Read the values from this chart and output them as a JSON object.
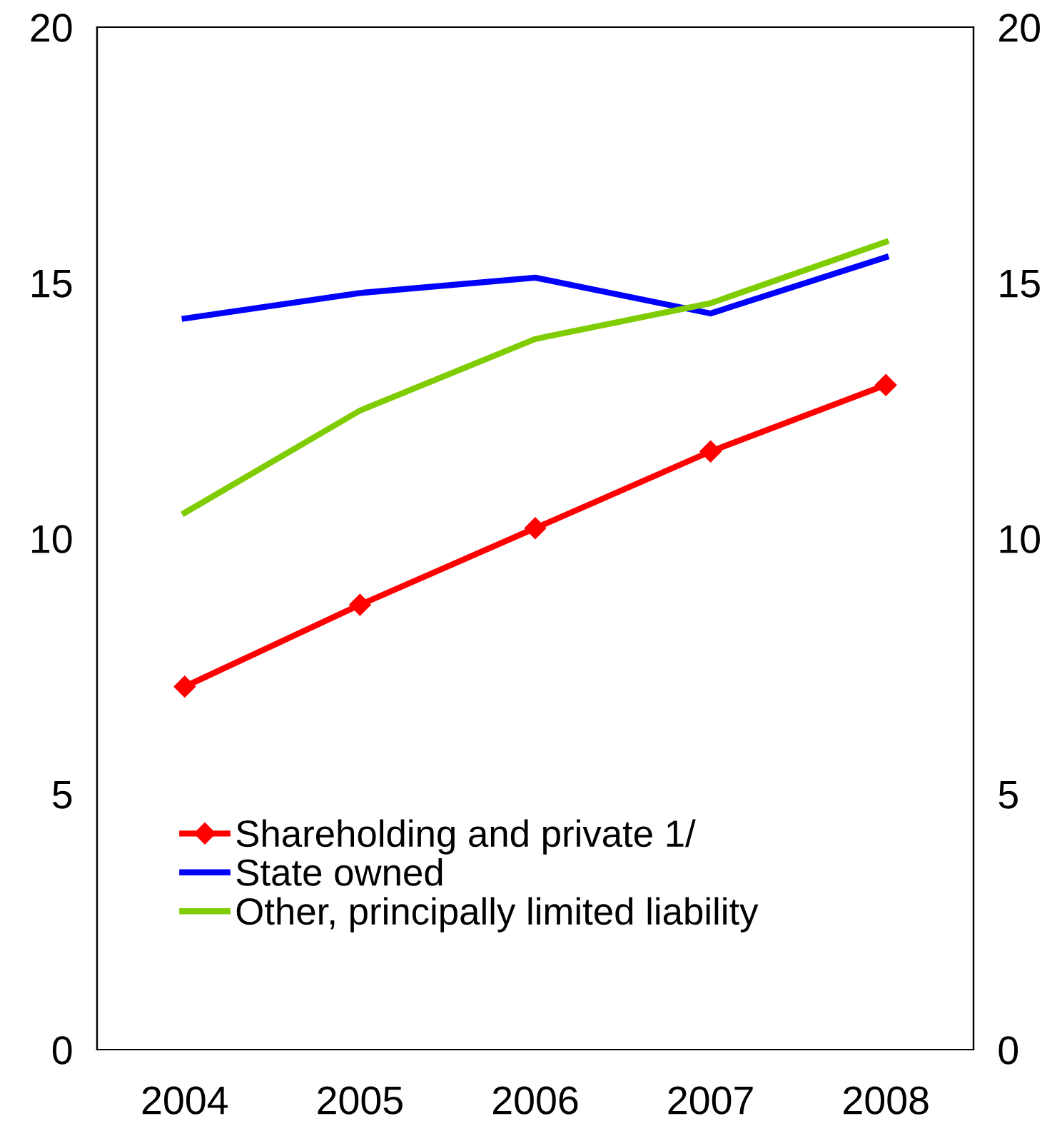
{
  "chart_data": {
    "type": "line",
    "categories": [
      "2004",
      "2005",
      "2006",
      "2007",
      "2008"
    ],
    "series": [
      {
        "name": "Shareholding and private 1/",
        "color": "#ff0000",
        "marker": "diamond",
        "values": [
          7.1,
          8.7,
          10.2,
          11.7,
          13.0
        ]
      },
      {
        "name": "State owned",
        "color": "#0000ff",
        "marker": "none",
        "values": [
          14.3,
          14.8,
          15.1,
          14.4,
          15.5
        ]
      },
      {
        "name": "Other, principally limited liability",
        "color": "#7fcc00",
        "marker": "none",
        "values": [
          10.5,
          12.5,
          13.9,
          14.6,
          15.8
        ]
      }
    ],
    "ylim": [
      0,
      20
    ],
    "yticks": [
      0,
      5,
      10,
      15,
      20
    ],
    "y2lim": [
      0,
      20
    ],
    "y2ticks": [
      0,
      5,
      10,
      15,
      20
    ],
    "grid": false,
    "legend": "bottom left",
    "line_style": "solid"
  }
}
